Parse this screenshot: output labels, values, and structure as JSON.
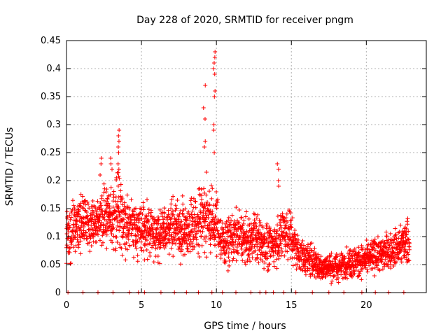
{
  "chart_data": {
    "type": "scatter",
    "title": "Day 228 of 2020, SRMTID for receiver pngm",
    "xlabel": "GPS time / hours",
    "ylabel": "SRMTID / TECUs",
    "xlim": [
      0,
      24
    ],
    "ylim": [
      0,
      0.45
    ],
    "xticks": [
      0,
      5,
      10,
      15,
      20
    ],
    "yticks": [
      0,
      0.05,
      0.1,
      0.15,
      0.2,
      0.25,
      0.3,
      0.35,
      0.4,
      0.45
    ],
    "ytick_labels": [
      "0",
      "0.05",
      "0.1",
      "0.15",
      "0.2",
      "0.25",
      "0.3",
      "0.35",
      "0.4",
      "0.45"
    ],
    "grid": true,
    "marker": "+",
    "color": "#ff0000",
    "profile": [
      [
        0.0,
        0.1,
        0.035
      ],
      [
        0.5,
        0.12,
        0.03
      ],
      [
        1.0,
        0.125,
        0.03
      ],
      [
        1.5,
        0.125,
        0.025
      ],
      [
        2.0,
        0.12,
        0.03
      ],
      [
        2.5,
        0.14,
        0.035
      ],
      [
        3.0,
        0.13,
        0.035
      ],
      [
        3.5,
        0.15,
        0.04
      ],
      [
        4.0,
        0.12,
        0.03
      ],
      [
        4.5,
        0.12,
        0.03
      ],
      [
        5.0,
        0.11,
        0.03
      ],
      [
        5.5,
        0.11,
        0.03
      ],
      [
        6.0,
        0.1,
        0.03
      ],
      [
        6.5,
        0.11,
        0.03
      ],
      [
        7.0,
        0.12,
        0.03
      ],
      [
        7.5,
        0.11,
        0.03
      ],
      [
        8.0,
        0.11,
        0.03
      ],
      [
        8.5,
        0.12,
        0.035
      ],
      [
        9.0,
        0.14,
        0.04
      ],
      [
        9.5,
        0.13,
        0.04
      ],
      [
        10.0,
        0.12,
        0.035
      ],
      [
        10.5,
        0.09,
        0.025
      ],
      [
        11.0,
        0.1,
        0.025
      ],
      [
        11.5,
        0.1,
        0.03
      ],
      [
        12.0,
        0.09,
        0.025
      ],
      [
        12.5,
        0.1,
        0.03
      ],
      [
        13.0,
        0.09,
        0.025
      ],
      [
        13.5,
        0.08,
        0.025
      ],
      [
        14.0,
        0.09,
        0.025
      ],
      [
        14.5,
        0.11,
        0.03
      ],
      [
        15.0,
        0.1,
        0.03
      ],
      [
        15.5,
        0.07,
        0.02
      ],
      [
        16.0,
        0.06,
        0.02
      ],
      [
        16.5,
        0.055,
        0.018
      ],
      [
        17.0,
        0.045,
        0.015
      ],
      [
        17.5,
        0.045,
        0.015
      ],
      [
        18.0,
        0.045,
        0.015
      ],
      [
        18.5,
        0.05,
        0.015
      ],
      [
        19.0,
        0.055,
        0.018
      ],
      [
        19.5,
        0.055,
        0.018
      ],
      [
        20.0,
        0.06,
        0.018
      ],
      [
        20.5,
        0.065,
        0.02
      ],
      [
        21.0,
        0.07,
        0.02
      ],
      [
        21.5,
        0.075,
        0.02
      ],
      [
        22.0,
        0.08,
        0.02
      ],
      [
        22.5,
        0.09,
        0.025
      ],
      [
        22.9,
        0.09,
        0.025
      ]
    ],
    "spikes": [
      {
        "x": 3.5,
        "values": [
          0.29,
          0.28,
          0.27,
          0.26,
          0.25,
          0.23,
          0.22
        ]
      },
      {
        "x": 9.85,
        "values": [
          0.43,
          0.42,
          0.41,
          0.4,
          0.39,
          0.36,
          0.35,
          0.3,
          0.29,
          0.25
        ]
      },
      {
        "x": 9.2,
        "values": [
          0.37,
          0.33,
          0.31,
          0.27,
          0.26
        ]
      },
      {
        "x": 14.1,
        "values": [
          0.23,
          0.22,
          0.2,
          0.19
        ]
      },
      {
        "x": 3.0,
        "values": [
          0.24,
          0.23,
          0.22
        ]
      },
      {
        "x": 2.3,
        "values": [
          0.24,
          0.23,
          0.21
        ]
      }
    ],
    "baseline_points": [
      0.1,
      1.1,
      2.1,
      3.1,
      4.2,
      4.8,
      5.2,
      6.3,
      7.2,
      8.0,
      8.8,
      9.7,
      10.4,
      11.3,
      12.3,
      12.9,
      13.3,
      13.8,
      14.5,
      15.3,
      16.4,
      17.5,
      18.5,
      19.7,
      20.6,
      21.5,
      22.5
    ]
  }
}
